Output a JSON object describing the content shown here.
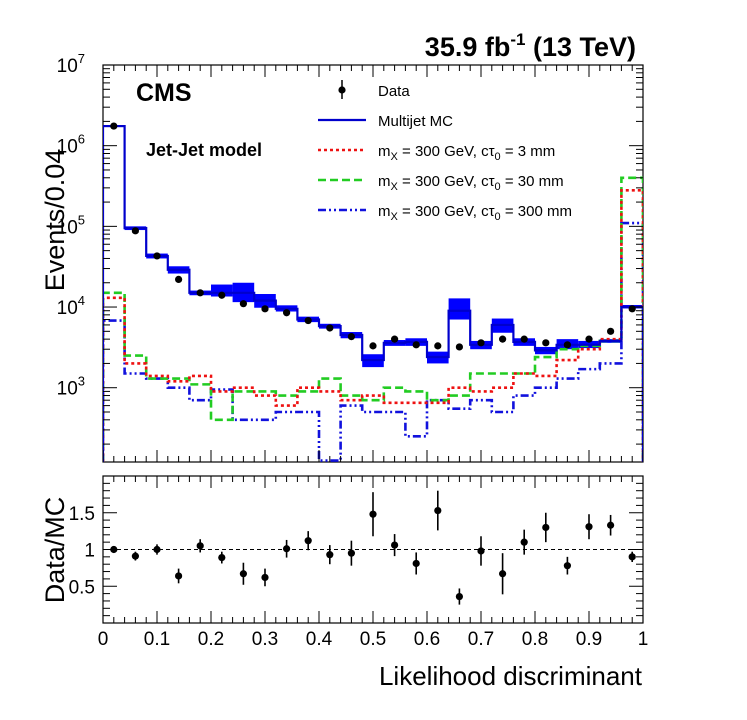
{
  "header": {
    "lumi_value": "35.9 fb",
    "lumi_exp": "-1",
    "lumi_energy": " (13 TeV)",
    "experiment": "CMS",
    "model": "Jet-Jet model"
  },
  "colors": {
    "data": "#000000",
    "mc": "#0000cc",
    "mc_band": "#0000ff",
    "red": "#ee1111",
    "green": "#22cc22",
    "blue": "#1111dd"
  },
  "chart_data": [
    {
      "type": "line",
      "panel": "top",
      "ylabel": "Events/0.04",
      "yscale": "log",
      "ylim": [
        120,
        10000000
      ],
      "xlim": [
        0,
        1
      ],
      "y_tick_labels": [
        "10",
        "10",
        "10",
        "10",
        "10"
      ],
      "y_tick_exps": [
        "3",
        "4",
        "5",
        "6",
        "7"
      ],
      "y_tick_values": [
        1000,
        10000,
        100000,
        1000000,
        10000000
      ],
      "bin_edges": [
        0,
        0.04,
        0.08,
        0.12,
        0.16,
        0.2,
        0.24,
        0.28,
        0.32,
        0.36,
        0.4,
        0.44,
        0.48,
        0.52,
        0.56,
        0.6,
        0.64,
        0.68,
        0.72,
        0.76,
        0.8,
        0.84,
        0.88,
        0.92,
        0.96,
        1.0
      ],
      "legend": {
        "data": "Data",
        "mc": "Multijet MC",
        "red_pre": "m",
        "red_sub": "X",
        "red_mid": " = 300 GeV, c",
        "red_tau": "τ",
        "red_tau_sub": "0",
        "red_post": " = 3 mm",
        "green_pre": "m",
        "green_sub": "X",
        "green_mid": " = 300 GeV, c",
        "green_tau": "τ",
        "green_tau_sub": "0",
        "green_post": " = 30 mm",
        "blue_pre": "m",
        "blue_sub": "X",
        "blue_mid": " = 300 GeV, c",
        "blue_tau": "τ",
        "blue_tau_sub": "0",
        "blue_post": " = 300 mm"
      },
      "series": [
        {
          "name": "Multijet MC",
          "style": "solid",
          "values": [
            1750000,
            95000,
            43000,
            29000,
            15000,
            15000,
            15000,
            12000,
            9500,
            7000,
            5800,
            4500,
            2200,
            3600,
            3700,
            2400,
            9000,
            3400,
            6000,
            3700,
            2900,
            3400,
            3400,
            3800,
            10000
          ],
          "err_low": [
            1700000,
            90000,
            40000,
            26000,
            14000,
            13500,
            11500,
            9800,
            8800,
            6500,
            5400,
            4100,
            1800,
            3300,
            3300,
            2000,
            7000,
            3000,
            4800,
            3300,
            2600,
            3000,
            3100,
            3600,
            9600
          ],
          "err_high": [
            1800000,
            100000,
            46000,
            32000,
            16000,
            19000,
            20000,
            14500,
            10500,
            7600,
            6200,
            4900,
            2600,
            3900,
            4100,
            2800,
            12800,
            3800,
            7200,
            4100,
            3200,
            4000,
            3800,
            4000,
            10600
          ]
        },
        {
          "name": "m_X = 300 GeV, ctau0 = 3 mm",
          "style": "dotted",
          "values": [
            13000,
            2000,
            1400,
            1200,
            1400,
            900,
            1000,
            800,
            600,
            1000,
            900,
            700,
            800,
            650,
            650,
            650,
            1000,
            900,
            1000,
            1500,
            1400,
            2200,
            3000,
            4000,
            280000
          ]
        },
        {
          "name": "m_X = 300 GeV, ctau0 = 30 mm",
          "style": "dashed",
          "values": [
            15000,
            2500,
            1300,
            1300,
            1100,
            400,
            900,
            900,
            800,
            900,
            1300,
            800,
            700,
            1000,
            900,
            700,
            800,
            1500,
            1500,
            1500,
            2400,
            3000,
            3300,
            3800,
            400000
          ]
        },
        {
          "name": "m_X = 300 GeV, ctau0 = 300 mm",
          "style": "dashdot",
          "values": [
            6800,
            1500,
            1300,
            1000,
            700,
            950,
            400,
            400,
            500,
            500,
            125,
            600,
            500,
            500,
            250,
            700,
            550,
            700,
            500,
            800,
            1000,
            1300,
            1700,
            2000,
            110000
          ]
        }
      ],
      "data_points": {
        "x": [
          0.02,
          0.06,
          0.1,
          0.14,
          0.18,
          0.22,
          0.26,
          0.3,
          0.34,
          0.38,
          0.42,
          0.46,
          0.5,
          0.54,
          0.58,
          0.62,
          0.66,
          0.7,
          0.74,
          0.78,
          0.82,
          0.86,
          0.9,
          0.94,
          0.98
        ],
        "y": [
          1750000,
          88000,
          43000,
          22000,
          15000,
          14000,
          11000,
          9500,
          8500,
          6800,
          5500,
          4300,
          3300,
          4000,
          3400,
          3300,
          3200,
          3600,
          4000,
          4000,
          3600,
          3400,
          4000,
          5000,
          9500
        ]
      }
    },
    {
      "type": "scatter",
      "panel": "bottom",
      "ylabel": "Data/MC",
      "xlabel": "Likelihood discriminant",
      "xlim": [
        0,
        1
      ],
      "ylim": [
        0,
        2.0
      ],
      "x_tick_labels": [
        "0",
        "0.1",
        "0.2",
        "0.3",
        "0.4",
        "0.5",
        "0.6",
        "0.7",
        "0.8",
        "0.9",
        "1"
      ],
      "x_tick_values": [
        0,
        0.1,
        0.2,
        0.3,
        0.4,
        0.5,
        0.6,
        0.7,
        0.8,
        0.9,
        1.0
      ],
      "y_tick_labels": [
        "0.5",
        "1",
        "1.5"
      ],
      "y_tick_values": [
        0.5,
        1.0,
        1.5
      ],
      "reference_line": 1.0,
      "x": [
        0.02,
        0.06,
        0.1,
        0.14,
        0.18,
        0.22,
        0.26,
        0.3,
        0.34,
        0.38,
        0.42,
        0.46,
        0.5,
        0.54,
        0.58,
        0.62,
        0.66,
        0.7,
        0.74,
        0.78,
        0.82,
        0.86,
        0.9,
        0.94,
        0.98
      ],
      "values": [
        1.0,
        0.91,
        1.0,
        0.64,
        1.05,
        0.89,
        0.67,
        0.62,
        1.01,
        1.12,
        0.93,
        0.95,
        1.48,
        1.06,
        0.81,
        1.53,
        0.36,
        0.98,
        0.67,
        1.1,
        1.3,
        0.78,
        1.31,
        1.33,
        0.9
      ],
      "errors": [
        0.02,
        0.06,
        0.07,
        0.1,
        0.09,
        0.08,
        0.15,
        0.12,
        0.12,
        0.13,
        0.13,
        0.17,
        0.3,
        0.15,
        0.15,
        0.27,
        0.11,
        0.2,
        0.28,
        0.17,
        0.2,
        0.12,
        0.17,
        0.14,
        0.07
      ]
    }
  ]
}
